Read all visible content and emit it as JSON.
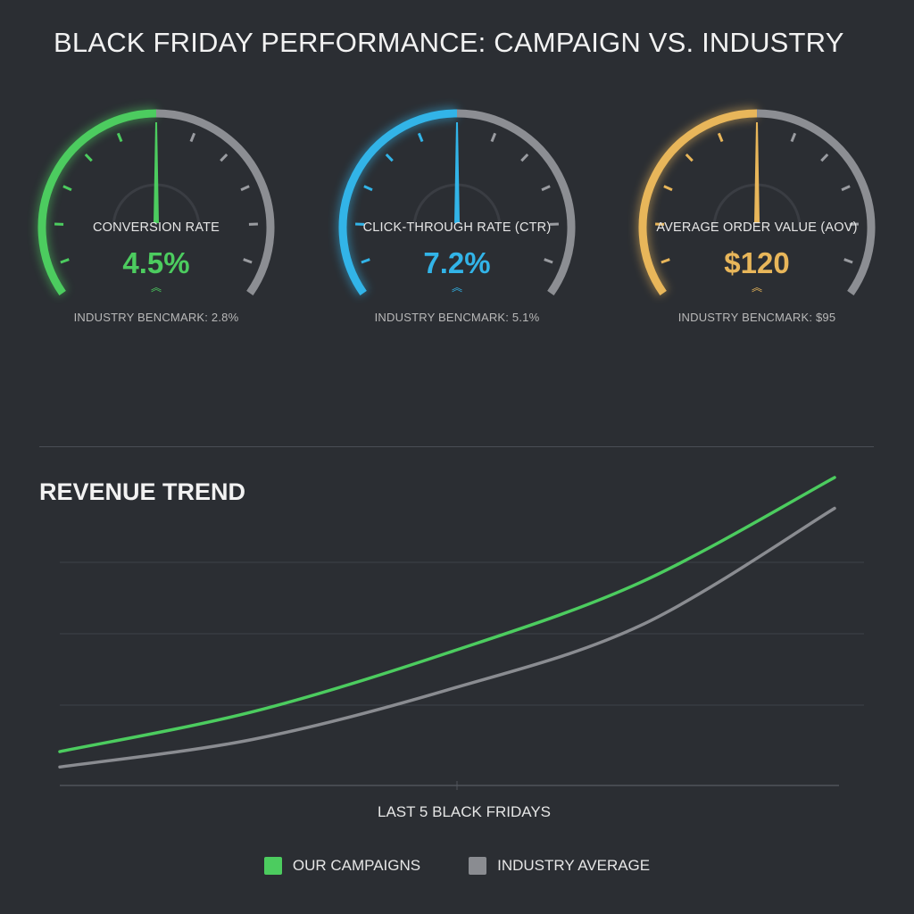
{
  "title": "BLACK FRIDAY PERFORMANCE: CAMPAIGN VS. INDUSTRY",
  "gauges": [
    {
      "label": "CONVERSION RATE",
      "value": "4.5%",
      "benchmark": "INDUSTRY BENCMARK: 2.8%",
      "color": "#4ccc5f",
      "arrow": "︽"
    },
    {
      "label": "CLICK-THROUGH RATE (CTR)",
      "value": "7.2%",
      "benchmark": "INDUSTRY BENCMARK: 5.1%",
      "color": "#32b4e8",
      "arrow": "︽"
    },
    {
      "label": "AVERAGE ORDER VALUE (AOV)",
      "value": "$120",
      "benchmark": "INDUSTRY BENCMARK: $95",
      "color": "#e8b65a",
      "arrow": "︽"
    }
  ],
  "chart_data": {
    "type": "line",
    "title": "REVENUE TREND",
    "xlabel": "LAST 5 BLACK FRIDAYS",
    "ylabel": "",
    "grid": true,
    "legend_position": "bottom",
    "x": [
      1,
      2,
      3,
      4,
      5
    ],
    "ylim": [
      0,
      100
    ],
    "series": [
      {
        "name": "OUR CAMPAIGNS",
        "color": "#4ccc5f",
        "values": [
          11,
          24,
          43,
          66,
          100
        ]
      },
      {
        "name": "INDUSTRY AVERAGE",
        "color": "#8a8c91",
        "values": [
          6,
          15,
          31,
          52,
          90
        ]
      }
    ]
  }
}
